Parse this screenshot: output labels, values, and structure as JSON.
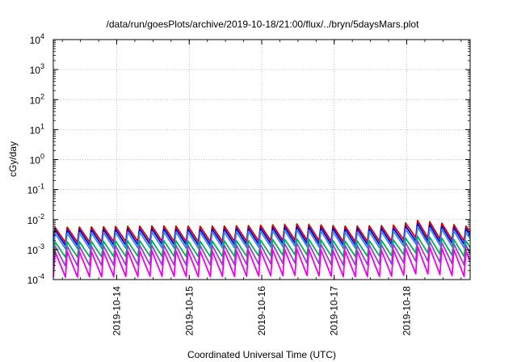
{
  "chart_data": {
    "type": "line",
    "title": "/data/run/goesPlots/archive/2019-10-18/21:00/flux/../bryn/5daysMars.plot",
    "xlabel": "Coordinated Universal Time (UTC)",
    "ylabel": "cGy/day",
    "yscale": "log",
    "ylim": [
      0.0001,
      10000
    ],
    "xlim": [
      "2019-10-13T03:00",
      "2019-10-18T21:00"
    ],
    "grid": true,
    "legend": "none",
    "y_ticks": [
      {
        "base": "10",
        "exp": "-4"
      },
      {
        "base": "10",
        "exp": "-3"
      },
      {
        "base": "10",
        "exp": "-2"
      },
      {
        "base": "10",
        "exp": "-1"
      },
      {
        "base": "10",
        "exp": "0"
      },
      {
        "base": "10",
        "exp": "1"
      },
      {
        "base": "10",
        "exp": "2"
      },
      {
        "base": "10",
        "exp": "3"
      },
      {
        "base": "10",
        "exp": "4"
      }
    ],
    "x_ticks": [
      {
        "value": "2019-10-14T00:00",
        "label": "2019-10-14"
      },
      {
        "value": "2019-10-15T00:00",
        "label": "2019-10-15"
      },
      {
        "value": "2019-10-16T00:00",
        "label": "2019-10-16"
      },
      {
        "value": "2019-10-17T00:00",
        "label": "2019-10-17"
      },
      {
        "value": "2019-10-18T00:00",
        "label": "2019-10-18"
      }
    ],
    "sawtooth_period_hours": 4,
    "series": [
      {
        "color": "#dd0000",
        "x": [
          "2019-10-13T04:00",
          "2019-10-13T20:00",
          "2019-10-14T12:00",
          "2019-10-15T04:00",
          "2019-10-15T20:00",
          "2019-10-16T06:00",
          "2019-10-16T12:00",
          "2019-10-17T04:00",
          "2019-10-17T20:00",
          "2019-10-18T04:00",
          "2019-10-18T12:00",
          "2019-10-18T20:00"
        ],
        "peaks": [
          0.0055,
          0.0058,
          0.0062,
          0.006,
          0.0063,
          0.0068,
          0.0072,
          0.006,
          0.0065,
          0.0095,
          0.0075,
          0.006
        ],
        "troughs": [
          0.0017,
          0.0018,
          0.0019,
          0.0018,
          0.0019,
          0.002,
          0.0021,
          0.0018,
          0.0019,
          0.0026,
          0.0022,
          0.0019
        ]
      },
      {
        "color": "#0000dd",
        "x": [
          "2019-10-13T04:00",
          "2019-10-13T20:00",
          "2019-10-14T12:00",
          "2019-10-15T04:00",
          "2019-10-15T20:00",
          "2019-10-16T06:00",
          "2019-10-16T12:00",
          "2019-10-17T04:00",
          "2019-10-17T20:00",
          "2019-10-18T04:00",
          "2019-10-18T12:00",
          "2019-10-18T20:00"
        ],
        "peaks": [
          0.0045,
          0.0047,
          0.005,
          0.0048,
          0.0051,
          0.0055,
          0.0058,
          0.0049,
          0.0052,
          0.0075,
          0.006,
          0.0049
        ],
        "troughs": [
          0.00135,
          0.0014,
          0.0015,
          0.00142,
          0.0015,
          0.00158,
          0.00165,
          0.00142,
          0.0015,
          0.002,
          0.00172,
          0.00148
        ]
      },
      {
        "color": "#3a87e0",
        "x": [
          "2019-10-13T04:00",
          "2019-10-13T20:00",
          "2019-10-14T12:00",
          "2019-10-15T04:00",
          "2019-10-15T20:00",
          "2019-10-16T06:00",
          "2019-10-16T12:00",
          "2019-10-17T04:00",
          "2019-10-17T20:00",
          "2019-10-18T04:00",
          "2019-10-18T12:00",
          "2019-10-18T20:00"
        ],
        "peaks": [
          0.0035,
          0.0037,
          0.0039,
          0.0038,
          0.004,
          0.0043,
          0.0046,
          0.0038,
          0.0041,
          0.0058,
          0.0047,
          0.0038
        ],
        "troughs": [
          0.00105,
          0.0011,
          0.00115,
          0.0011,
          0.00118,
          0.00125,
          0.0013,
          0.0011,
          0.00118,
          0.0016,
          0.00135,
          0.00112
        ]
      },
      {
        "color": "#00b050",
        "x": [
          "2019-10-13T04:00",
          "2019-10-13T20:00",
          "2019-10-14T12:00",
          "2019-10-15T04:00",
          "2019-10-15T20:00",
          "2019-10-16T06:00",
          "2019-10-16T12:00",
          "2019-10-17T04:00",
          "2019-10-17T20:00",
          "2019-10-18T04:00",
          "2019-10-18T12:00",
          "2019-10-18T20:00"
        ],
        "peaks": [
          0.0018,
          0.0019,
          0.002,
          0.0019,
          0.002,
          0.0022,
          0.0023,
          0.0019,
          0.0021,
          0.0028,
          0.0024,
          0.0019
        ],
        "troughs": [
          0.00055,
          0.00058,
          0.0006,
          0.00058,
          0.0006,
          0.00064,
          0.00068,
          0.00058,
          0.00062,
          0.0008,
          0.0007,
          0.00058
        ]
      },
      {
        "color": "#9a3fd0",
        "x": [
          "2019-10-13T04:00",
          "2019-10-13T20:00",
          "2019-10-14T12:00",
          "2019-10-15T04:00",
          "2019-10-15T20:00",
          "2019-10-16T06:00",
          "2019-10-16T12:00",
          "2019-10-17T04:00",
          "2019-10-17T20:00",
          "2019-10-18T04:00",
          "2019-10-18T12:00",
          "2019-10-18T20:00"
        ],
        "peaks": [
          0.0013,
          0.00135,
          0.0014,
          0.00138,
          0.00145,
          0.00155,
          0.00165,
          0.00138,
          0.0015,
          0.002,
          0.0017,
          0.0014
        ],
        "troughs": [
          0.00028,
          0.0003,
          0.00031,
          0.0003,
          0.00032,
          0.00034,
          0.00036,
          0.0003,
          0.00033,
          0.00042,
          0.00037,
          0.0003
        ]
      },
      {
        "color": "#ee00ee",
        "x": [
          "2019-10-13T04:00",
          "2019-10-13T20:00",
          "2019-10-14T12:00",
          "2019-10-15T04:00",
          "2019-10-15T20:00",
          "2019-10-16T06:00",
          "2019-10-16T12:00",
          "2019-10-17T04:00",
          "2019-10-17T20:00",
          "2019-10-18T04:00",
          "2019-10-18T12:00",
          "2019-10-18T20:00"
        ],
        "peaks": [
          0.00085,
          0.00088,
          0.00092,
          0.0009,
          0.00095,
          0.001,
          0.00105,
          0.0009,
          0.00097,
          0.0013,
          0.0011,
          0.0009
        ],
        "troughs": [
          0.00012,
          0.000125,
          0.00013,
          0.000125,
          0.00013,
          0.000135,
          0.00014,
          0.000125,
          0.00013,
          0.00016,
          0.000145,
          0.000125
        ]
      }
    ]
  }
}
